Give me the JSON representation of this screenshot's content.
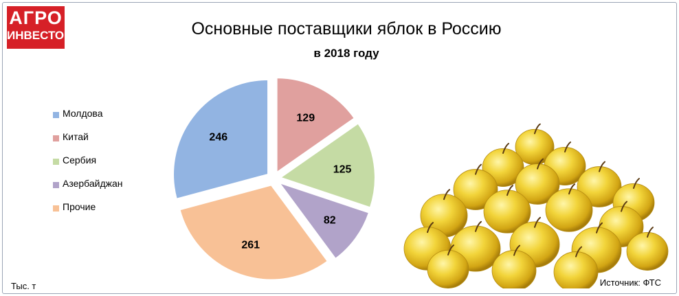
{
  "logo": {
    "line1": "АГРО",
    "line2": "ИНВЕСТОР"
  },
  "unit_label": "Тыс. т",
  "source_label": "Источник: ФТС",
  "chart_data": {
    "type": "pie",
    "title": "Основные поставщики яблок в Россию",
    "subtitle": "в 2018 году",
    "legend_position": "left",
    "slices": [
      {
        "label": "Китай",
        "value": 129,
        "color": "#e0a09e"
      },
      {
        "label": "Сербия",
        "value": 125,
        "color": "#c5dba4"
      },
      {
        "label": "Азербайджан",
        "value": 82,
        "color": "#b1a3c9"
      },
      {
        "label": "Прочие",
        "value": 261,
        "color": "#f8c196"
      },
      {
        "label": "Молдова",
        "value": 246,
        "color": "#92b4e2"
      }
    ],
    "legend": [
      {
        "label": "Молдова",
        "color": "#92b4e2"
      },
      {
        "label": "Китай",
        "color": "#e0a09e"
      },
      {
        "label": "Сербия",
        "color": "#c5dba4"
      },
      {
        "label": "Азербайджан",
        "color": "#b1a3c9"
      },
      {
        "label": "Прочие",
        "color": "#f8c196"
      }
    ]
  }
}
